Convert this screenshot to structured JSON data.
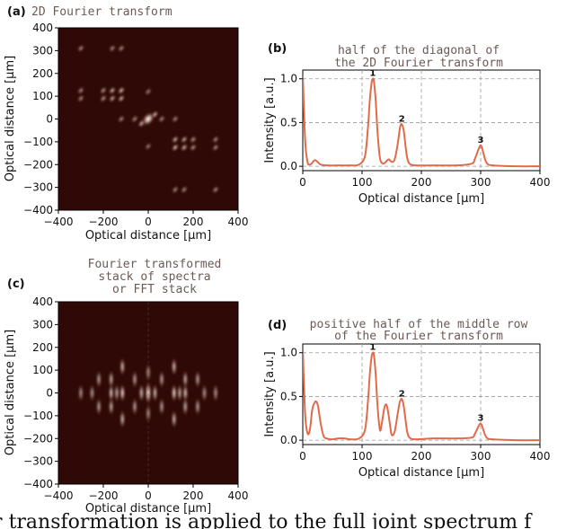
{
  "figure": {
    "panels": [
      {
        "label": "(a)",
        "title_lines": [
          "2D Fourier transform"
        ],
        "xlabel": "Optical distance [μm]",
        "ylabel": "Optical distance [μm]",
        "xticks": [
          "−400",
          "−200",
          "0",
          "200",
          "400"
        ],
        "yticks": [
          "400",
          "300",
          "200",
          "100",
          "0",
          "−100",
          "−200",
          "−300",
          "−400"
        ]
      },
      {
        "label": "(b)",
        "title_lines": [
          "half of the diagonal of",
          "the 2D Fourier transform"
        ],
        "xlabel": "Optical distance [μm]",
        "ylabel": "Intensity [a.u.]",
        "xticks": [
          "0",
          "100",
          "200",
          "300",
          "400"
        ],
        "yticks": [
          "1.0",
          "0.5",
          "0.0"
        ]
      },
      {
        "label": "(c)",
        "title_lines": [
          "Fourier transformed",
          "stack of spectra",
          "or FFT stack"
        ],
        "xlabel": "Optical distance [μm]",
        "ylabel": "Optical distance [μm]",
        "xticks": [
          "−400",
          "−200",
          "0",
          "200",
          "400"
        ],
        "yticks": [
          "400",
          "300",
          "200",
          "100",
          "0",
          "−100",
          "−200",
          "−300",
          "−400"
        ]
      },
      {
        "label": "(d)",
        "title_lines": [
          "positive half of the middle row",
          "of the Fourier transform"
        ],
        "xlabel": "Optical distance [μm]",
        "ylabel": "Intensity [a.u.]",
        "xticks": [
          "0",
          "100",
          "200",
          "300",
          "400"
        ],
        "yticks": [
          "1.0",
          "0.5",
          "0.0"
        ]
      }
    ],
    "caption_fragment": "ier transformation is applied to the full joint spectrum f"
  },
  "chart_data": [
    {
      "type": "heatmap",
      "title": "2D Fourier transform",
      "xlabel": "Optical distance [μm]",
      "ylabel": "Optical distance [μm]",
      "xlim": [
        -400,
        400
      ],
      "ylim": [
        -400,
        400
      ],
      "colormap": "black-to-white (pink)",
      "spots": [
        {
          "x": 0,
          "y": 0,
          "intensity": 1.0
        },
        {
          "x": 30,
          "y": 20,
          "intensity": 0.5
        },
        {
          "x": -30,
          "y": -20,
          "intensity": 0.5
        },
        {
          "x": -120,
          "y": 125,
          "intensity": 0.55
        },
        {
          "x": -160,
          "y": 125,
          "intensity": 0.5
        },
        {
          "x": -120,
          "y": 90,
          "intensity": 0.5
        },
        {
          "x": -160,
          "y": 90,
          "intensity": 0.45
        },
        {
          "x": -200,
          "y": 90,
          "intensity": 0.35
        },
        {
          "x": -200,
          "y": 125,
          "intensity": 0.35
        },
        {
          "x": -300,
          "y": 310,
          "intensity": 0.3
        },
        {
          "x": -300,
          "y": 125,
          "intensity": 0.3
        },
        {
          "x": -300,
          "y": 90,
          "intensity": 0.3
        },
        {
          "x": -160,
          "y": 310,
          "intensity": 0.3
        },
        {
          "x": -120,
          "y": 310,
          "intensity": 0.3
        },
        {
          "x": 120,
          "y": -125,
          "intensity": 0.55
        },
        {
          "x": 160,
          "y": -125,
          "intensity": 0.5
        },
        {
          "x": 120,
          "y": -90,
          "intensity": 0.5
        },
        {
          "x": 160,
          "y": -90,
          "intensity": 0.45
        },
        {
          "x": 200,
          "y": -90,
          "intensity": 0.35
        },
        {
          "x": 200,
          "y": -125,
          "intensity": 0.35
        },
        {
          "x": 300,
          "y": -310,
          "intensity": 0.3
        },
        {
          "x": 300,
          "y": -125,
          "intensity": 0.3
        },
        {
          "x": 300,
          "y": -90,
          "intensity": 0.3
        },
        {
          "x": 160,
          "y": -310,
          "intensity": 0.3
        },
        {
          "x": 120,
          "y": -310,
          "intensity": 0.3
        },
        {
          "x": -120,
          "y": 0,
          "intensity": 0.3
        },
        {
          "x": -60,
          "y": 0,
          "intensity": 0.3
        },
        {
          "x": 60,
          "y": 0,
          "intensity": 0.3
        },
        {
          "x": 120,
          "y": 0,
          "intensity": 0.3
        },
        {
          "x": 0,
          "y": -120,
          "intensity": 0.25
        },
        {
          "x": 0,
          "y": 120,
          "intensity": 0.25
        }
      ]
    },
    {
      "type": "line",
      "title": "half of the diagonal of the 2D Fourier transform",
      "xlabel": "Optical distance [μm]",
      "ylabel": "Intensity [a.u.]",
      "xlim": [
        0,
        400
      ],
      "ylim": [
        -0.05,
        1.1
      ],
      "grid": true,
      "series": [
        {
          "color": "#e06a4c",
          "x": [
            0,
            4,
            8,
            12,
            16,
            20,
            25,
            30,
            40,
            60,
            80,
            95,
            105,
            110,
            113,
            116,
            118,
            120,
            123,
            126,
            130,
            135,
            140,
            145,
            150,
            155,
            160,
            163,
            165,
            167,
            170,
            173,
            176,
            180,
            190,
            220,
            260,
            285,
            290,
            295,
            298,
            300,
            302,
            305,
            310,
            320,
            360,
            400
          ],
          "y": [
            1.05,
            0.3,
            0.05,
            0.02,
            0.04,
            0.07,
            0.05,
            0.02,
            0.01,
            0.01,
            0.01,
            0.02,
            0.12,
            0.45,
            0.75,
            0.95,
            1.0,
            0.97,
            0.75,
            0.4,
            0.1,
            0.03,
            0.05,
            0.08,
            0.05,
            0.08,
            0.25,
            0.4,
            0.47,
            0.48,
            0.42,
            0.25,
            0.1,
            0.03,
            0.01,
            0.01,
            0.01,
            0.03,
            0.08,
            0.17,
            0.22,
            0.24,
            0.22,
            0.14,
            0.04,
            0.01,
            0.0,
            0.0
          ]
        }
      ],
      "peak_labels": [
        {
          "x": 118,
          "y": 1.0,
          "text": "1"
        },
        {
          "x": 167,
          "y": 0.48,
          "text": "2"
        },
        {
          "x": 300,
          "y": 0.24,
          "text": "3"
        }
      ]
    },
    {
      "type": "heatmap",
      "title": "Fourier transformed stack of spectra or FFT stack",
      "xlabel": "Optical distance [μm]",
      "ylabel": "Optical distance [μm]",
      "xlim": [
        -400,
        400
      ],
      "ylim": [
        -400,
        400
      ],
      "colormap": "black-to-white (pink)",
      "spots": [
        {
          "x": 0,
          "y": 0,
          "intensity": 1.0
        },
        {
          "x": -30,
          "y": 0,
          "intensity": 0.45
        },
        {
          "x": 30,
          "y": 0,
          "intensity": 0.45
        },
        {
          "x": -115,
          "y": 0,
          "intensity": 0.6
        },
        {
          "x": 115,
          "y": 0,
          "intensity": 0.6
        },
        {
          "x": -140,
          "y": 0,
          "intensity": 0.4
        },
        {
          "x": 140,
          "y": 0,
          "intensity": 0.4
        },
        {
          "x": -165,
          "y": 0,
          "intensity": 0.5
        },
        {
          "x": 165,
          "y": 0,
          "intensity": 0.5
        },
        {
          "x": -300,
          "y": 0,
          "intensity": 0.3
        },
        {
          "x": 300,
          "y": 0,
          "intensity": 0.3
        },
        {
          "x": -115,
          "y": 115,
          "intensity": 0.45
        },
        {
          "x": 115,
          "y": 115,
          "intensity": 0.45
        },
        {
          "x": -115,
          "y": -115,
          "intensity": 0.45
        },
        {
          "x": 115,
          "y": -115,
          "intensity": 0.45
        },
        {
          "x": -165,
          "y": 60,
          "intensity": 0.4
        },
        {
          "x": 165,
          "y": 60,
          "intensity": 0.4
        },
        {
          "x": -165,
          "y": -60,
          "intensity": 0.4
        },
        {
          "x": 165,
          "y": -60,
          "intensity": 0.4
        },
        {
          "x": -220,
          "y": 60,
          "intensity": 0.35
        },
        {
          "x": 220,
          "y": 60,
          "intensity": 0.35
        },
        {
          "x": -220,
          "y": -60,
          "intensity": 0.35
        },
        {
          "x": 220,
          "y": -60,
          "intensity": 0.35
        },
        {
          "x": -60,
          "y": 60,
          "intensity": 0.35
        },
        {
          "x": 60,
          "y": 60,
          "intensity": 0.35
        },
        {
          "x": -60,
          "y": -60,
          "intensity": 0.35
        },
        {
          "x": 60,
          "y": -60,
          "intensity": 0.35
        },
        {
          "x": -250,
          "y": 0,
          "intensity": 0.3
        },
        {
          "x": 250,
          "y": 0,
          "intensity": 0.3
        },
        {
          "x": 0,
          "y": 90,
          "intensity": 0.3
        },
        {
          "x": 0,
          "y": -90,
          "intensity": 0.3
        }
      ]
    },
    {
      "type": "line",
      "title": "positive half of the middle row of the Fourier transform",
      "xlabel": "Optical distance [μm]",
      "ylabel": "Intensity [a.u.]",
      "xlim": [
        0,
        400
      ],
      "ylim": [
        -0.05,
        1.1
      ],
      "grid": true,
      "series": [
        {
          "color": "#e06a4c",
          "x": [
            0,
            4,
            8,
            12,
            16,
            20,
            23,
            26,
            30,
            35,
            40,
            50,
            60,
            70,
            80,
            95,
            105,
            110,
            113,
            116,
            118,
            120,
            123,
            126,
            130,
            133,
            137,
            140,
            143,
            147,
            150,
            155,
            160,
            163,
            165,
            167,
            170,
            173,
            176,
            180,
            190,
            220,
            260,
            285,
            290,
            295,
            298,
            300,
            302,
            305,
            310,
            320,
            360,
            400
          ],
          "y": [
            1.05,
            0.3,
            0.08,
            0.12,
            0.35,
            0.43,
            0.44,
            0.38,
            0.2,
            0.05,
            0.02,
            0.01,
            0.02,
            0.02,
            0.01,
            0.02,
            0.12,
            0.45,
            0.75,
            0.95,
            1.0,
            0.97,
            0.75,
            0.4,
            0.12,
            0.18,
            0.35,
            0.41,
            0.36,
            0.18,
            0.06,
            0.1,
            0.3,
            0.42,
            0.46,
            0.47,
            0.4,
            0.25,
            0.1,
            0.03,
            0.01,
            0.02,
            0.02,
            0.03,
            0.07,
            0.14,
            0.18,
            0.19,
            0.17,
            0.11,
            0.03,
            0.01,
            0.0,
            0.0
          ]
        }
      ],
      "peak_labels": [
        {
          "x": 118,
          "y": 1.0,
          "text": "1"
        },
        {
          "x": 167,
          "y": 0.47,
          "text": "2"
        },
        {
          "x": 300,
          "y": 0.19,
          "text": "3"
        }
      ]
    }
  ]
}
